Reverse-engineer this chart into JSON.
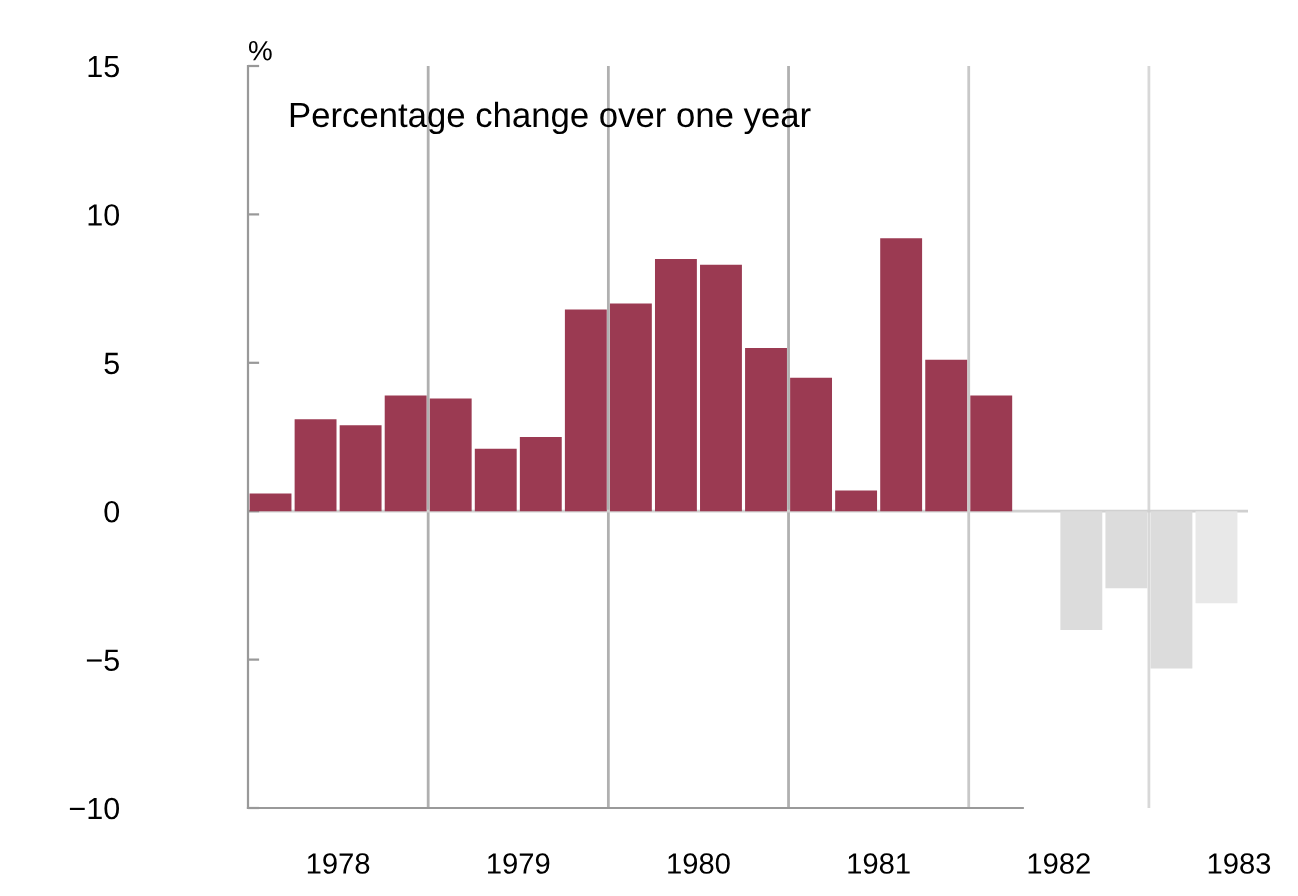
{
  "chart_data": {
    "type": "bar",
    "title": "Percentage change over one year",
    "ylabel": "%",
    "x": [
      1978.125,
      1978.375,
      1978.625,
      1978.875,
      1979.125,
      1979.375,
      1979.625,
      1979.875,
      1980.125,
      1980.375,
      1980.625,
      1980.875,
      1981.125,
      1981.375,
      1981.625,
      1981.875,
      1982.125,
      1982.375,
      1982.625,
      1982.875,
      1983.125,
      1983.375
    ],
    "values": [
      0.6,
      3.1,
      2.9,
      3.9,
      3.8,
      2.1,
      2.5,
      6.8,
      7.0,
      8.5,
      8.3,
      5.5,
      4.5,
      0.7,
      9.2,
      5.1,
      3.9,
      null,
      -4.0,
      -2.6,
      -5.3,
      -3.1
    ],
    "colors": [
      "#9b3a52",
      "#9b3a52",
      "#9b3a52",
      "#9b3a52",
      "#9b3a52",
      "#9b3a52",
      "#9b3a52",
      "#9b3a52",
      "#9b3a52",
      "#9b3a52",
      "#9b3a52",
      "#9b3a52",
      "#9b3a52",
      "#9b3a52",
      "#9b3a52",
      "#9b3a52",
      "#9b3a52",
      "#9b3a52",
      "#dcdcdc",
      "#dcdcdc",
      "#dcdcdc",
      "#e8e8e8"
    ],
    "xlim": [
      1978,
      1983.55
    ],
    "xticks": [
      {
        "value": 1978.5,
        "label": "1978"
      },
      {
        "value": 1979.5,
        "label": "1979"
      },
      {
        "value": 1980.5,
        "label": "1980"
      },
      {
        "value": 1981.5,
        "label": "1981"
      },
      {
        "value": 1982.5,
        "label": "1982"
      },
      {
        "value": 1983.5,
        "label": "1983"
      }
    ],
    "ylim": [
      -10,
      15
    ],
    "yticks": [
      {
        "value": -10,
        "label": "−10"
      },
      {
        "value": -5,
        "label": "−5"
      },
      0,
      5,
      10,
      15
    ],
    "ref_lines": [
      {
        "axis": "x",
        "value": 1979,
        "color": "#b0b0b0"
      },
      {
        "axis": "x",
        "value": 1980,
        "color": "#b0b0b0"
      },
      {
        "axis": "x",
        "value": 1981,
        "color": "#b0b0b0"
      },
      {
        "axis": "x",
        "value": 1982,
        "color": "#c8c8c8"
      },
      {
        "axis": "x",
        "value": 1983,
        "color": "#d8d8d8"
      },
      {
        "axis": "y",
        "value": 0,
        "color": "#d0d0d0"
      }
    ],
    "grid": false,
    "legend": false
  }
}
